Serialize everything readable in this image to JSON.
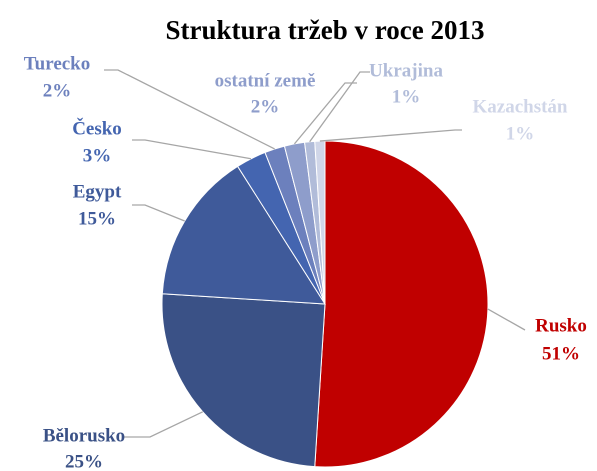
{
  "chart_data": {
    "type": "pie",
    "title": "Struktura tržeb v roce 2013",
    "categories": [
      "Rusko",
      "Bělorusko",
      "Egypt",
      "Česko",
      "Turecko",
      "ostatní země",
      "Ukrajina",
      "Kazachstán"
    ],
    "values": [
      51,
      25,
      15,
      3,
      2,
      2,
      1,
      1
    ],
    "value_labels": [
      "51%",
      "25%",
      "15%",
      "3%",
      "2%",
      "2%",
      "1%",
      "1%"
    ],
    "colors": [
      "#c00000",
      "#3a5186",
      "#3f5a9a",
      "#4465b0",
      "#6c80bd",
      "#8e9dcb",
      "#b1bcd9",
      "#d0d6e8"
    ]
  }
}
